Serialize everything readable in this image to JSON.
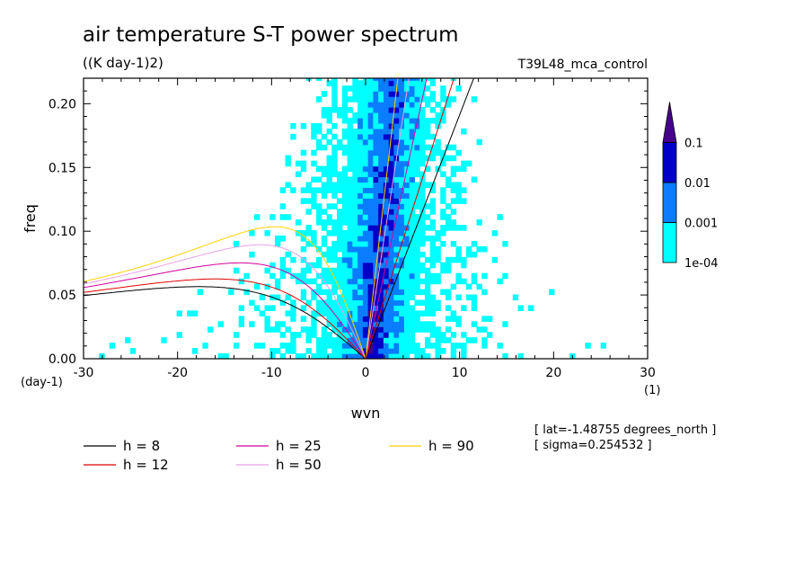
{
  "chart_data": {
    "type": "heatmap",
    "title": "air temperature S-T power spectrum",
    "subtitle": "((K day-1)2)",
    "run_label": "T39L48_mca_control",
    "xlabel": "wvn",
    "ylabel": "freq",
    "x_unit": "(1)",
    "y_unit": "(day-1)",
    "xlim": [
      -30,
      30
    ],
    "ylim": [
      0,
      0.22
    ],
    "x_ticks": [
      -30,
      -20,
      -10,
      0,
      10,
      20,
      30
    ],
    "x_tick_labels": [
      "-30",
      "-20",
      "-10",
      "0",
      "10",
      "20",
      "30"
    ],
    "y_ticks": [
      0.0,
      0.05,
      0.1,
      0.15,
      0.2
    ],
    "y_tick_labels": [
      "0.00",
      "0.05",
      "0.10",
      "0.15",
      "0.20"
    ],
    "colorbar": {
      "levels": [
        "1e-04",
        "0.001",
        "0.01",
        "0.1"
      ],
      "colors": [
        "#00ffff",
        "#0a7dff",
        "#0000c8",
        "#46008c"
      ]
    },
    "series": [
      {
        "name": "h =  8",
        "h": 8,
        "color": "#000000"
      },
      {
        "name": "h = 12",
        "h": 12,
        "color": "#e00000"
      },
      {
        "name": "h = 25",
        "h": 25,
        "color": "#d400a0"
      },
      {
        "name": "h = 50",
        "h": 50,
        "color": "#e8a0e8"
      },
      {
        "name": "h = 90",
        "h": 90,
        "color": "#ffd200"
      }
    ],
    "annotations": [
      "[ lat=-1.48755 degrees_north ]",
      "[ sigma=0.254532 ]"
    ]
  }
}
